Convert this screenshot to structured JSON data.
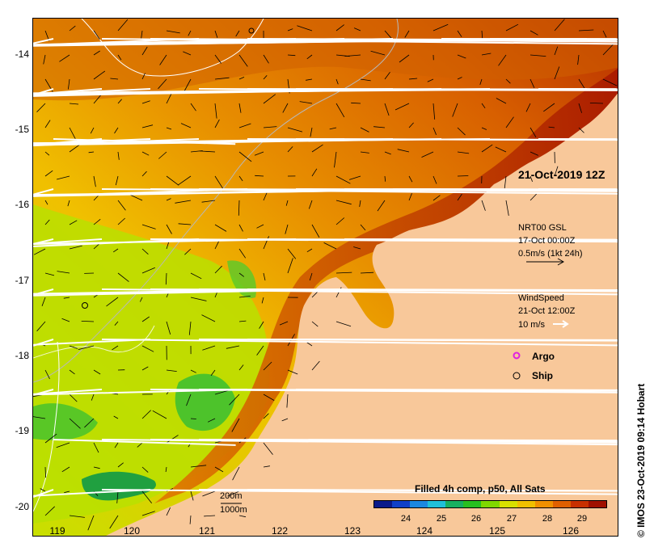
{
  "map": {
    "x_ticks": [
      "119",
      "120",
      "121",
      "122",
      "123",
      "124",
      "125",
      "126"
    ],
    "y_ticks": [
      "-14",
      "-15",
      "-16",
      "-17",
      "-18",
      "-19",
      "-20"
    ],
    "date_label": "21-Oct-2019 12Z",
    "current_legend": {
      "title": "NRT00 GSL",
      "time": "17-Oct 00:00Z",
      "scale": "0.5m/s (1kt 24h)"
    },
    "wind_legend": {
      "title": "WindSpeed",
      "time": "21-Oct 12:00Z",
      "scale": "10 m/s"
    },
    "markers": {
      "argo": "Argo",
      "ship": "Ship",
      "argo_color": "#e020e0"
    },
    "contours": {
      "shallow": "200m",
      "deep": "1000m"
    },
    "colorbar": {
      "title": "Filled 4h comp, p50, All Sats",
      "ticks": [
        "24",
        "25",
        "26",
        "27",
        "28",
        "29"
      ],
      "colors": [
        "#0a1a8a",
        "#1040c8",
        "#1c88e0",
        "#20c0d8",
        "#18b060",
        "#28c020",
        "#80d800",
        "#d8e000",
        "#f0c000",
        "#f09000",
        "#e06000",
        "#c83000",
        "#a01000"
      ]
    },
    "land_color": "#f8c89a",
    "credit": "© IMOS 23-Oct-2019 09:14 Hobart"
  }
}
